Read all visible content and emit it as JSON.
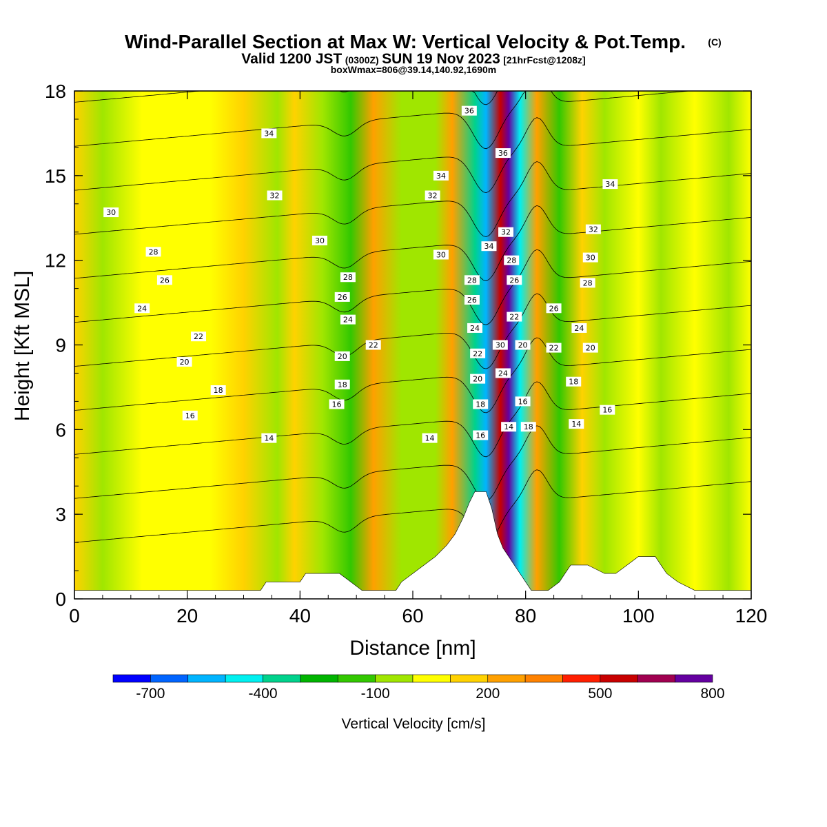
{
  "chart_data": {
    "type": "heatmap",
    "title": "Wind-Parallel Section at Max W: Vertical Velocity & Pot.Temp.",
    "title_mark": "(C)",
    "subtitle_parts": [
      "Valid 1200 JST",
      "(0300Z)",
      "SUN 19 Nov 2023",
      "[21hrFcst@1208z]"
    ],
    "subtitle2": "boxWmax=806@39.14,140.92,1690m",
    "xlabel": "Distance [nm]",
    "ylabel": "Height [Kft MSL]",
    "xlim": [
      0,
      120
    ],
    "ylim": [
      0,
      18
    ],
    "x_ticks": [
      "0",
      "20",
      "40",
      "60",
      "80",
      "100",
      "120"
    ],
    "y_ticks": [
      "0",
      "3",
      "6",
      "9",
      "12",
      "15",
      "18"
    ],
    "colorbar": {
      "label": "Vertical Velocity [cm/s]",
      "tick_labels": [
        "-700",
        "-400",
        "-100",
        "200",
        "500",
        "800"
      ],
      "tick_values": [
        -700,
        -400,
        -100,
        200,
        500,
        800
      ],
      "colors": [
        "#0000ff",
        "#0064ff",
        "#00b4ff",
        "#00f0f0",
        "#00d28c",
        "#00b400",
        "#32c800",
        "#a0e600",
        "#ffff00",
        "#ffd200",
        "#ffa000",
        "#ff8200",
        "#ff1e00",
        "#c80000",
        "#a00050",
        "#6400a0"
      ]
    },
    "velocity_bands": [
      {
        "x": 0,
        "w": 100
      },
      {
        "x": 5,
        "w": -20
      },
      {
        "x": 12,
        "w": 80
      },
      {
        "x": 22,
        "w": 90
      },
      {
        "x": 24,
        "w": 20
      },
      {
        "x": 30,
        "w": 100
      },
      {
        "x": 36,
        "w": -40
      },
      {
        "x": 39,
        "w": 160
      },
      {
        "x": 44,
        "w": -50
      },
      {
        "x": 49,
        "w": -120
      },
      {
        "x": 53,
        "w": 230
      },
      {
        "x": 58,
        "w": -60
      },
      {
        "x": 64,
        "w": -80
      },
      {
        "x": 67,
        "w": 240
      },
      {
        "x": 71,
        "w": -380
      },
      {
        "x": 73,
        "w": -600
      },
      {
        "x": 75.5,
        "w": 560
      },
      {
        "x": 77,
        "w": 780
      },
      {
        "x": 79,
        "w": -420
      },
      {
        "x": 82,
        "w": 280
      },
      {
        "x": 86,
        "w": -130
      },
      {
        "x": 90,
        "w": 150
      },
      {
        "x": 94,
        "w": -90
      },
      {
        "x": 100,
        "w": 90
      },
      {
        "x": 104,
        "w": -60
      },
      {
        "x": 110,
        "w": 80
      },
      {
        "x": 116,
        "w": -40
      },
      {
        "x": 120,
        "w": 20
      }
    ],
    "theta_levels": [
      14,
      16,
      18,
      20,
      22,
      24,
      26,
      28,
      30,
      32,
      34,
      36
    ],
    "theta_contour_labels": [
      {
        "text": "30",
        "x": 6.5,
        "y": 13.7
      },
      {
        "text": "28",
        "x": 14,
        "y": 12.3
      },
      {
        "text": "26",
        "x": 16,
        "y": 11.3
      },
      {
        "text": "24",
        "x": 12,
        "y": 10.3
      },
      {
        "text": "22",
        "x": 22,
        "y": 9.3
      },
      {
        "text": "20",
        "x": 19.5,
        "y": 8.4
      },
      {
        "text": "18",
        "x": 25.5,
        "y": 7.4
      },
      {
        "text": "16",
        "x": 20.5,
        "y": 6.5
      },
      {
        "text": "14",
        "x": 34.5,
        "y": 5.7
      },
      {
        "text": "34",
        "x": 34.5,
        "y": 16.5
      },
      {
        "text": "32",
        "x": 35.5,
        "y": 14.3
      },
      {
        "text": "30",
        "x": 43.5,
        "y": 12.7
      },
      {
        "text": "28",
        "x": 48.5,
        "y": 11.4
      },
      {
        "text": "26",
        "x": 47.5,
        "y": 10.7
      },
      {
        "text": "24",
        "x": 48.5,
        "y": 9.9
      },
      {
        "text": "22",
        "x": 53,
        "y": 9.0
      },
      {
        "text": "20",
        "x": 47.5,
        "y": 8.6
      },
      {
        "text": "18",
        "x": 47.5,
        "y": 7.6
      },
      {
        "text": "16",
        "x": 46.5,
        "y": 6.9
      },
      {
        "text": "34",
        "x": 65,
        "y": 15.0
      },
      {
        "text": "32",
        "x": 63.5,
        "y": 14.3
      },
      {
        "text": "30",
        "x": 65,
        "y": 12.2
      },
      {
        "text": "14",
        "x": 63,
        "y": 5.7
      },
      {
        "text": "36",
        "x": 70,
        "y": 17.3
      },
      {
        "text": "36",
        "x": 76,
        "y": 15.8
      },
      {
        "text": "34",
        "x": 73.5,
        "y": 12.5
      },
      {
        "text": "32",
        "x": 76.5,
        "y": 13.0
      },
      {
        "text": "28",
        "x": 70.5,
        "y": 11.3
      },
      {
        "text": "26",
        "x": 70.5,
        "y": 10.6
      },
      {
        "text": "24",
        "x": 71,
        "y": 9.6
      },
      {
        "text": "22",
        "x": 71.5,
        "y": 8.7
      },
      {
        "text": "20",
        "x": 71.5,
        "y": 7.8
      },
      {
        "text": "18",
        "x": 72,
        "y": 6.9
      },
      {
        "text": "16",
        "x": 72,
        "y": 5.8
      },
      {
        "text": "30",
        "x": 75.5,
        "y": 9.0
      },
      {
        "text": "24",
        "x": 76,
        "y": 8.0
      },
      {
        "text": "14",
        "x": 77,
        "y": 6.1
      },
      {
        "text": "28",
        "x": 77.5,
        "y": 12.0
      },
      {
        "text": "26",
        "x": 78,
        "y": 11.3
      },
      {
        "text": "22",
        "x": 78,
        "y": 10.0
      },
      {
        "text": "20",
        "x": 79.5,
        "y": 9.0
      },
      {
        "text": "16",
        "x": 79.5,
        "y": 7.0
      },
      {
        "text": "18",
        "x": 80.5,
        "y": 6.1
      },
      {
        "text": "26",
        "x": 85,
        "y": 10.3
      },
      {
        "text": "22",
        "x": 85,
        "y": 8.9
      },
      {
        "text": "18",
        "x": 88.5,
        "y": 7.7
      },
      {
        "text": "14",
        "x": 89,
        "y": 6.2
      },
      {
        "text": "34",
        "x": 95,
        "y": 14.7
      },
      {
        "text": "32",
        "x": 92,
        "y": 13.1
      },
      {
        "text": "30",
        "x": 91.5,
        "y": 12.1
      },
      {
        "text": "28",
        "x": 91,
        "y": 11.2
      },
      {
        "text": "24",
        "x": 89.5,
        "y": 9.6
      },
      {
        "text": "20",
        "x": 91.5,
        "y": 8.9
      },
      {
        "text": "16",
        "x": 94.5,
        "y": 6.7
      }
    ],
    "terrain_kft": [
      [
        0,
        0.3
      ],
      [
        5,
        0.3
      ],
      [
        10,
        0.3
      ],
      [
        15,
        0.3
      ],
      [
        20,
        0.3
      ],
      [
        25,
        0.3
      ],
      [
        30,
        0.3
      ],
      [
        33,
        0.3
      ],
      [
        34,
        0.6
      ],
      [
        40,
        0.6
      ],
      [
        41,
        0.9
      ],
      [
        47,
        0.9
      ],
      [
        49,
        0.6
      ],
      [
        51,
        0.3
      ],
      [
        57,
        0.3
      ],
      [
        58,
        0.6
      ],
      [
        60,
        0.9
      ],
      [
        62,
        1.2
      ],
      [
        64,
        1.5
      ],
      [
        66,
        1.9
      ],
      [
        67.5,
        2.3
      ],
      [
        69,
        2.9
      ],
      [
        70,
        3.4
      ],
      [
        71,
        3.8
      ],
      [
        73,
        3.8
      ],
      [
        74,
        3.2
      ],
      [
        75,
        2.3
      ],
      [
        76,
        1.8
      ],
      [
        77,
        1.5
      ],
      [
        78,
        1.2
      ],
      [
        79,
        0.9
      ],
      [
        80,
        0.6
      ],
      [
        81,
        0.3
      ],
      [
        84,
        0.3
      ],
      [
        86,
        0.6
      ],
      [
        87,
        0.9
      ],
      [
        88,
        1.2
      ],
      [
        91,
        1.2
      ],
      [
        94,
        0.9
      ],
      [
        96,
        0.9
      ],
      [
        98,
        1.2
      ],
      [
        100,
        1.5
      ],
      [
        103,
        1.5
      ],
      [
        104,
        1.2
      ],
      [
        105,
        0.9
      ],
      [
        107,
        0.6
      ],
      [
        110,
        0.3
      ],
      [
        115,
        0.3
      ],
      [
        120,
        0.3
      ]
    ]
  }
}
